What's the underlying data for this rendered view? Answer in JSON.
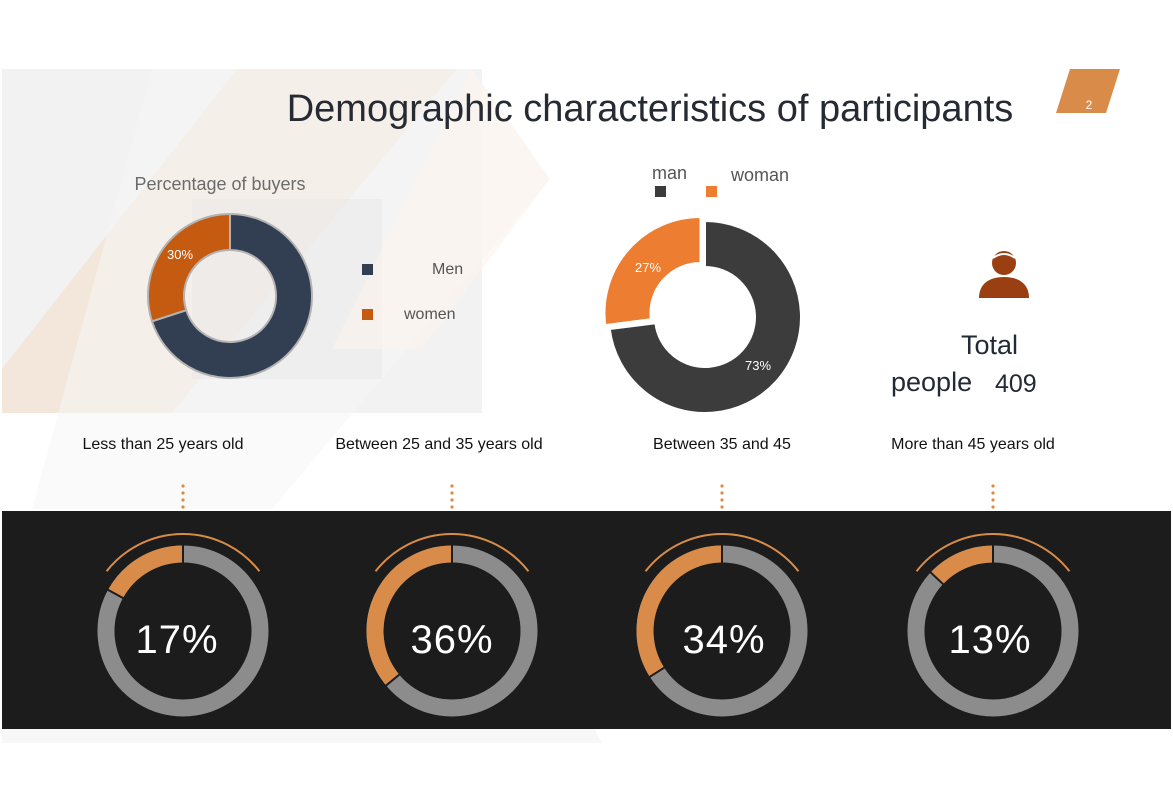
{
  "slide": {
    "title": "Demographic characteristics of participants",
    "page_number": "2"
  },
  "colors": {
    "navy": "#323e52",
    "rust": "#c55a11",
    "dark_gray": "#3c3c3c",
    "orange": "#ed7d31",
    "ring_orange": "#d98c4a",
    "ring_gray": "#8c8c8c",
    "band": "#1c1c1c"
  },
  "buyers_chart": {
    "title": "Percentage of buyers",
    "legend": [
      "Men",
      "women"
    ],
    "data_labels": [
      "30%"
    ]
  },
  "gender_chart": {
    "legend": [
      "man",
      "woman"
    ],
    "data_labels": [
      "27%",
      "73%"
    ]
  },
  "total": {
    "label_line1": "Total",
    "label_line2": "people",
    "value": "409",
    "icon": "person-icon"
  },
  "age_groups": [
    {
      "label": "Less than 25 years old",
      "percent_text": "17%"
    },
    {
      "label": "Between 25 and 35 years old",
      "percent_text": "36%"
    },
    {
      "label": "Between 35 and 45",
      "percent_text": "34%"
    },
    {
      "label": "More than 45 years old",
      "percent_text": "13%"
    }
  ],
  "chart_data": [
    {
      "type": "pie",
      "variant": "donut",
      "title": "Percentage of buyers",
      "categories": [
        "Men",
        "women"
      ],
      "values": [
        70,
        30
      ],
      "data_labels": [
        "",
        "30%"
      ],
      "colors": [
        "#323e52",
        "#c55a11"
      ],
      "legend": "right"
    },
    {
      "type": "pie",
      "variant": "donut",
      "title": "",
      "categories": [
        "man",
        "woman"
      ],
      "values": [
        73,
        27
      ],
      "data_labels": [
        "73%",
        "27%"
      ],
      "colors": [
        "#3c3c3c",
        "#ed7d31"
      ],
      "legend": "top"
    },
    {
      "type": "pie",
      "variant": "progress-rings",
      "title": "",
      "categories": [
        "Less than 25 years old",
        "Between 25 and 35 years old",
        "Between 35 and 45",
        "More than 45 years old"
      ],
      "values": [
        17,
        36,
        34,
        13
      ],
      "data_labels": [
        "17%",
        "36%",
        "34%",
        "13%"
      ]
    }
  ]
}
